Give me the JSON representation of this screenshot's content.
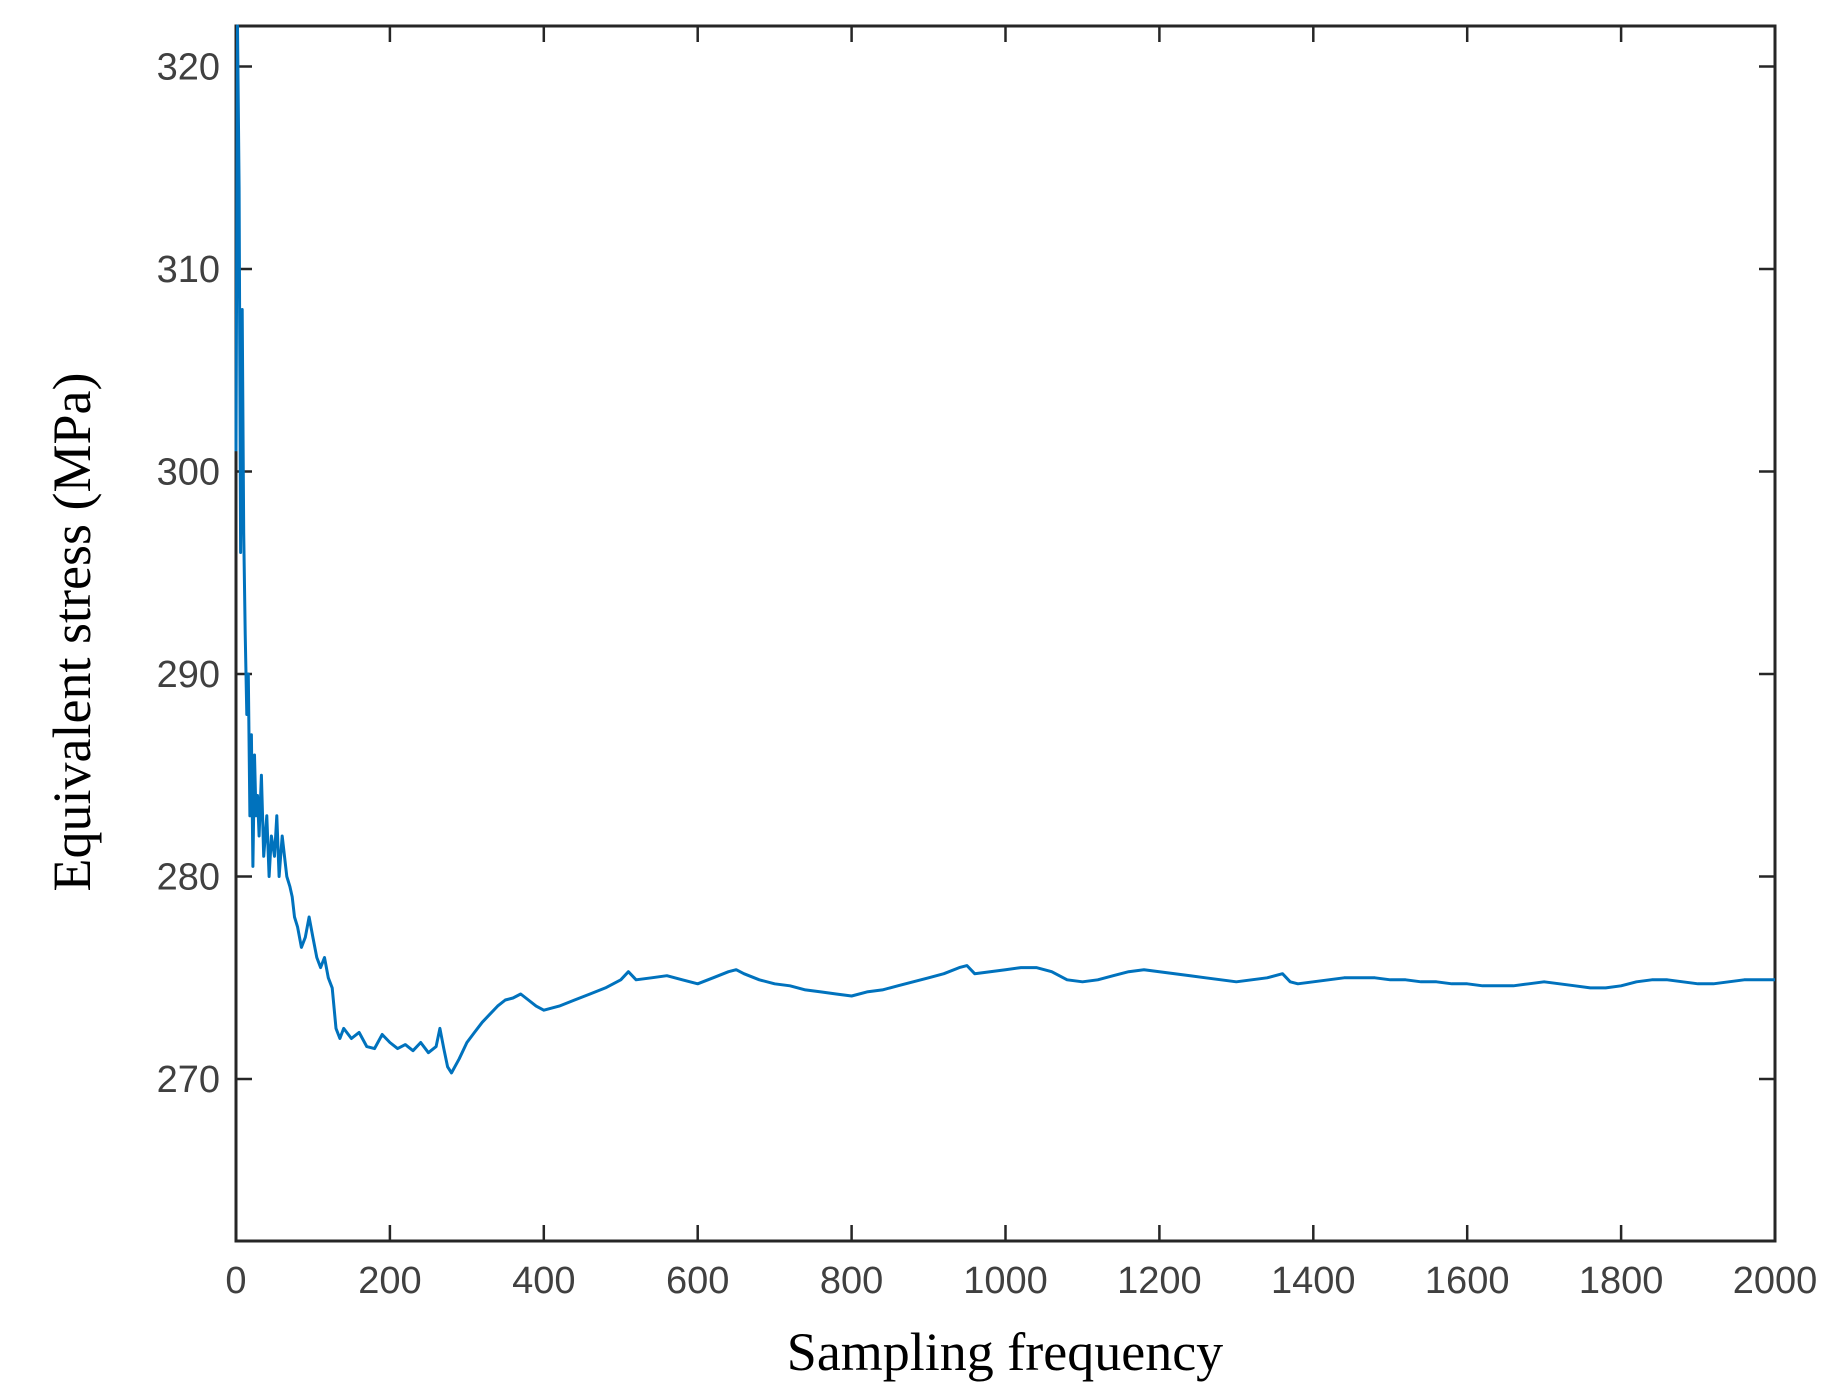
{
  "chart_data": {
    "type": "line",
    "title": "",
    "xlabel": "Sampling frequency",
    "ylabel": "Equivalent stress (MPa)",
    "xlim": [
      0,
      2000
    ],
    "ylim": [
      262,
      322
    ],
    "xticks": [
      "0",
      "200",
      "400",
      "600",
      "800",
      "1000",
      "1200",
      "1400",
      "1600",
      "1800",
      "2000"
    ],
    "yticks": [
      "270",
      "280",
      "290",
      "300",
      "310",
      "320"
    ],
    "grid": false,
    "legend": "none",
    "line_color": "#0072BD",
    "series": [
      {
        "x": [
          0,
          2,
          4,
          6,
          8,
          10,
          12,
          14,
          16,
          18,
          20,
          22,
          24,
          26,
          28,
          30,
          33,
          36,
          40,
          43,
          46,
          50,
          53,
          56,
          60,
          63,
          66,
          70,
          73,
          76,
          80,
          85,
          90,
          95,
          100,
          105,
          110,
          115,
          120,
          125,
          130,
          135,
          140,
          150,
          160,
          170,
          180,
          190,
          200,
          210,
          220,
          230,
          240,
          250,
          260,
          265,
          270,
          275,
          280,
          290,
          300,
          310,
          320,
          330,
          340,
          350,
          360,
          370,
          380,
          390,
          400,
          420,
          440,
          460,
          480,
          500,
          510,
          520,
          540,
          560,
          580,
          600,
          620,
          640,
          650,
          660,
          680,
          700,
          720,
          740,
          760,
          780,
          800,
          820,
          840,
          860,
          880,
          900,
          920,
          940,
          950,
          960,
          980,
          1000,
          1020,
          1040,
          1060,
          1080,
          1100,
          1120,
          1140,
          1160,
          1180,
          1200,
          1220,
          1240,
          1260,
          1280,
          1300,
          1320,
          1340,
          1360,
          1370,
          1380,
          1400,
          1420,
          1440,
          1460,
          1480,
          1500,
          1520,
          1540,
          1560,
          1580,
          1600,
          1620,
          1640,
          1660,
          1680,
          1700,
          1720,
          1740,
          1760,
          1780,
          1800,
          1820,
          1840,
          1860,
          1880,
          1900,
          1920,
          1940,
          1960,
          1980,
          2000
        ],
        "y": [
          301,
          322,
          314,
          296,
          308,
          297,
          292,
          288,
          290,
          283,
          287,
          280.5,
          286,
          283,
          284,
          282,
          285,
          281,
          283,
          280,
          282,
          281,
          283,
          280,
          282,
          281,
          280,
          279.5,
          279,
          278,
          277.5,
          276.5,
          277,
          278,
          277,
          276,
          275.5,
          276,
          275,
          274.5,
          272.5,
          272,
          272.5,
          272,
          272.3,
          271.6,
          271.5,
          272.2,
          271.8,
          271.5,
          271.7,
          271.4,
          271.8,
          271.3,
          271.6,
          272.5,
          271.5,
          270.6,
          270.3,
          271,
          271.8,
          272.3,
          272.8,
          273.2,
          273.6,
          273.9,
          274,
          274.2,
          273.9,
          273.6,
          273.4,
          273.6,
          273.9,
          274.2,
          274.5,
          274.9,
          275.3,
          274.9,
          275,
          275.1,
          274.9,
          274.7,
          275,
          275.3,
          275.4,
          275.2,
          274.9,
          274.7,
          274.6,
          274.4,
          274.3,
          274.2,
          274.1,
          274.3,
          274.4,
          274.6,
          274.8,
          275,
          275.2,
          275.5,
          275.6,
          275.2,
          275.3,
          275.4,
          275.5,
          275.5,
          275.3,
          274.9,
          274.8,
          274.9,
          275.1,
          275.3,
          275.4,
          275.3,
          275.2,
          275.1,
          275,
          274.9,
          274.8,
          274.9,
          275,
          275.2,
          274.8,
          274.7,
          274.8,
          274.9,
          275,
          275,
          275,
          274.9,
          274.9,
          274.8,
          274.8,
          274.7,
          274.7,
          274.6,
          274.6,
          274.6,
          274.7,
          274.8,
          274.7,
          274.6,
          274.5,
          274.5,
          274.6,
          274.8,
          274.9,
          274.9,
          274.8,
          274.7,
          274.7,
          274.8,
          274.9,
          274.9,
          274.9
        ]
      }
    ]
  }
}
